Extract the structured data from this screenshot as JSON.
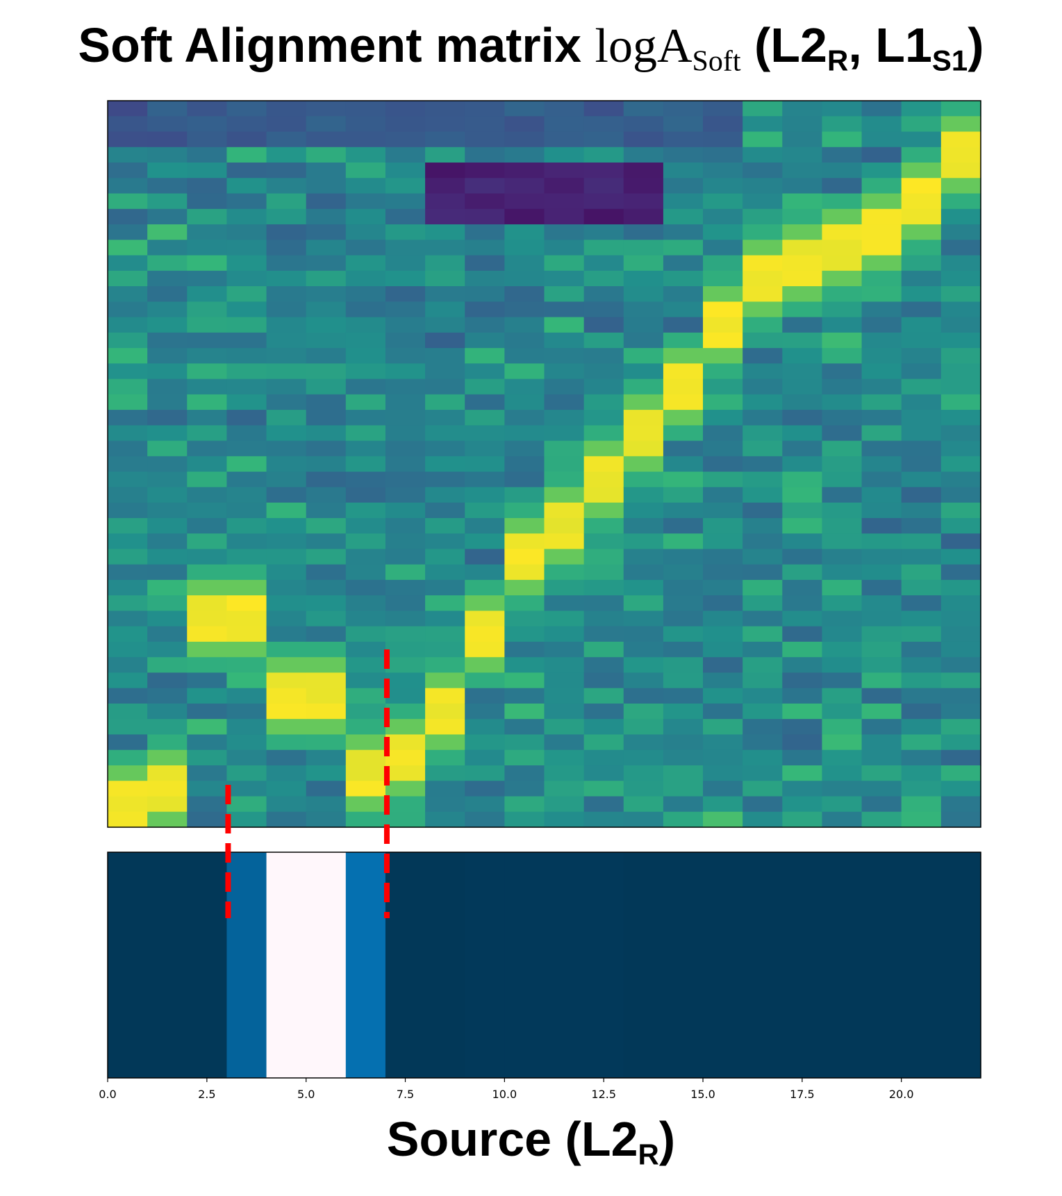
{
  "title": {
    "prefix": "Soft Alignment matrix ",
    "log": "logA",
    "log_sub": "Soft",
    "args_open": " (L2",
    "args_sub1": "R",
    "args_mid": ", L1",
    "args_sub2": "S1",
    "args_close": ")"
  },
  "xlabel": {
    "main": "Source (L2",
    "sub": "R",
    "close": ")"
  },
  "chart_data": [
    {
      "type": "heatmap",
      "colormap": "viridis",
      "columns": 22,
      "rows": 47,
      "x_range": [
        0,
        22
      ],
      "value_range": [
        0,
        1
      ],
      "ridges": [
        {
          "x": [
            0,
            1,
            2,
            3,
            4,
            5,
            6,
            7,
            8,
            9,
            10,
            11,
            12,
            13,
            14,
            15,
            16,
            17,
            18,
            19,
            20,
            21
          ],
          "row_from_top": [
            45,
            44,
            33,
            33,
            38,
            38,
            43,
            42,
            39,
            34,
            29,
            27,
            24,
            21,
            18,
            14,
            11,
            10,
            9,
            8,
            6,
            3
          ]
        }
      ],
      "dark_region": {
        "x": [
          8,
          13
        ],
        "row_from_top": [
          4,
          7
        ]
      }
    },
    {
      "type": "heatmap",
      "colormap": "PuBu_r",
      "x": [
        0,
        1,
        2,
        3,
        4,
        5,
        6,
        7,
        8,
        9,
        10,
        11,
        12,
        13,
        14,
        15,
        16,
        17,
        18,
        19,
        20,
        21
      ],
      "values": [
        0.0,
        0.0,
        0.0,
        0.35,
        1.0,
        1.0,
        0.5,
        0.0,
        0.0,
        0.01,
        0.01,
        0.01,
        0.01,
        0.0,
        0.0,
        0.0,
        0.0,
        0.0,
        0.0,
        0.0,
        0.0,
        0.0
      ],
      "xlim": [
        0,
        22
      ],
      "xticks": [
        "0.0",
        "2.5",
        "5.0",
        "7.5",
        "10.0",
        "12.5",
        "15.0",
        "17.5",
        "20.0"
      ],
      "xtick_values": [
        0,
        2.5,
        5,
        7.5,
        10,
        12.5,
        15,
        17.5,
        20
      ],
      "xlabel": "Source (L2R)"
    }
  ],
  "annotations": [
    {
      "type": "dashed-line",
      "color": "#ff0000",
      "x": 3,
      "span": "lower-left"
    },
    {
      "type": "dashed-line",
      "color": "#ff0000",
      "x": 7,
      "span": "lower-right"
    }
  ]
}
